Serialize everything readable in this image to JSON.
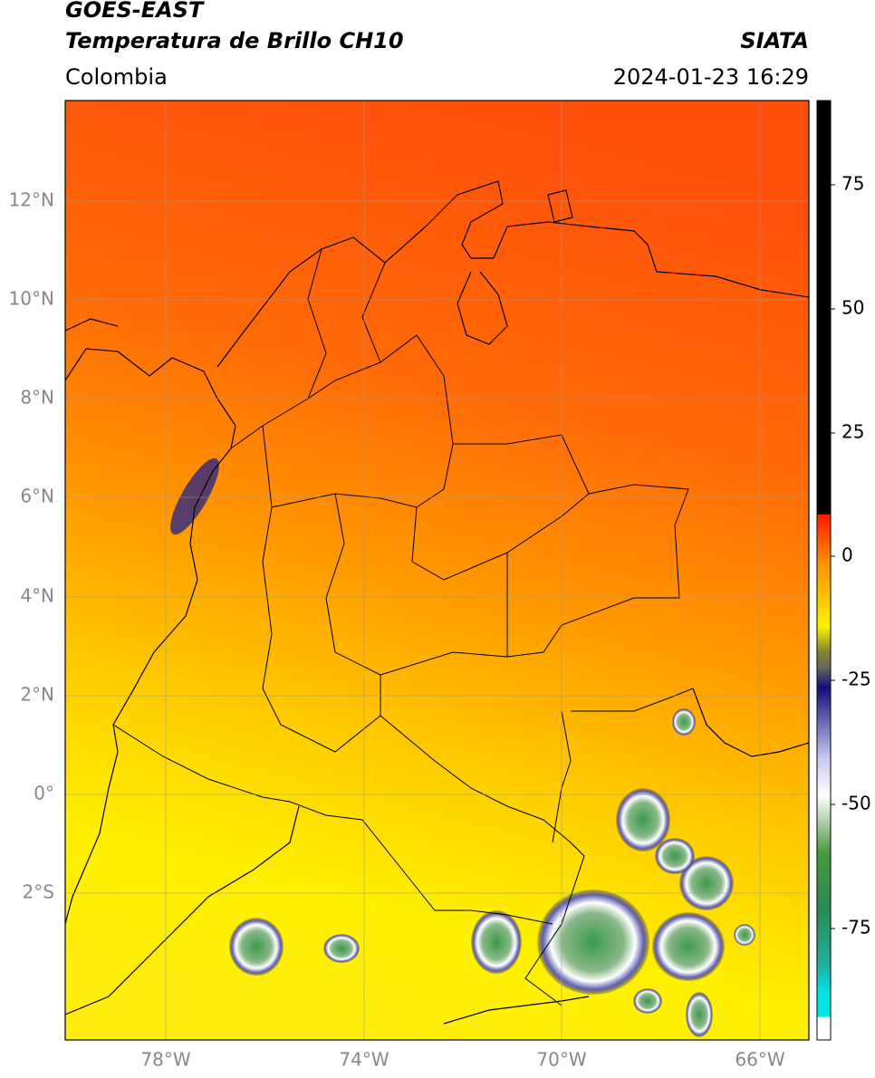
{
  "header": {
    "title": "GOES-EAST",
    "subtitle": "Temperatura de Brillo CH10",
    "region": "Colombia",
    "source": "SIATA",
    "datetime": "2024-01-23 16:29"
  },
  "map": {
    "lat_labels": [
      "12°N",
      "10°N",
      "8°N",
      "6°N",
      "4°N",
      "2°N",
      "0°",
      "2°S"
    ],
    "lon_labels": [
      "78°W",
      "74°W",
      "70°W",
      "66°W"
    ]
  },
  "colorbar": {
    "ticks": [
      "75",
      "50",
      "25",
      "0",
      "-25",
      "-50",
      "-75"
    ]
  }
}
